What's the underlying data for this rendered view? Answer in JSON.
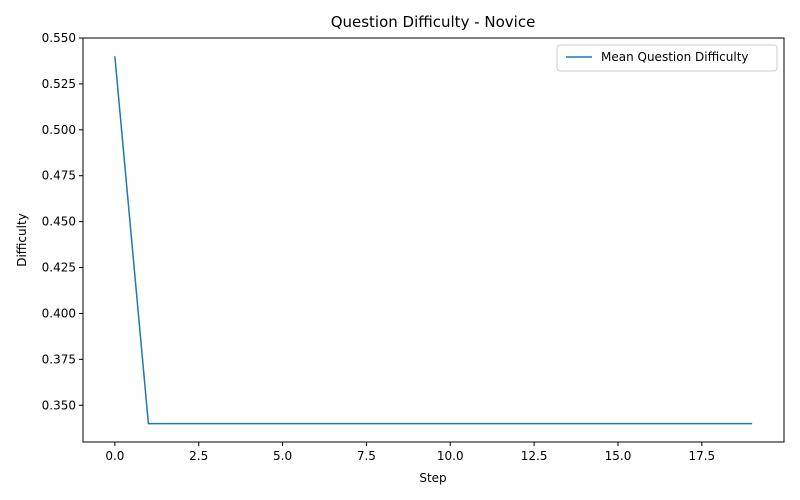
{
  "chart_data": {
    "type": "line",
    "title": "Question Difficulty - Novice",
    "xlabel": "Step",
    "ylabel": "Difficulty",
    "xlim": [
      -0.95,
      19.95
    ],
    "ylim": [
      0.33,
      0.55
    ],
    "x_ticks": [
      0,
      2.5,
      5,
      7.5,
      10,
      12.5,
      15,
      17.5
    ],
    "x_tick_labels": [
      "0.0",
      "2.5",
      "5.0",
      "7.5",
      "10.0",
      "12.5",
      "15.0",
      "17.5"
    ],
    "y_ticks": [
      0.35,
      0.375,
      0.4,
      0.425,
      0.45,
      0.475,
      0.5,
      0.525,
      0.55
    ],
    "y_tick_labels": [
      "0.350",
      "0.375",
      "0.400",
      "0.425",
      "0.450",
      "0.475",
      "0.500",
      "0.525",
      "0.550"
    ],
    "grid": false,
    "legend_position": "top-right",
    "series": [
      {
        "name": "Mean Question Difficulty",
        "color": "#1f77b4",
        "x": [
          0,
          1,
          2,
          3,
          4,
          5,
          6,
          7,
          8,
          9,
          10,
          11,
          12,
          13,
          14,
          15,
          16,
          17,
          18,
          19
        ],
        "y": [
          0.54,
          0.34,
          0.34,
          0.34,
          0.34,
          0.34,
          0.34,
          0.34,
          0.34,
          0.34,
          0.34,
          0.34,
          0.34,
          0.34,
          0.34,
          0.34,
          0.34,
          0.34,
          0.34,
          0.34
        ]
      }
    ]
  }
}
